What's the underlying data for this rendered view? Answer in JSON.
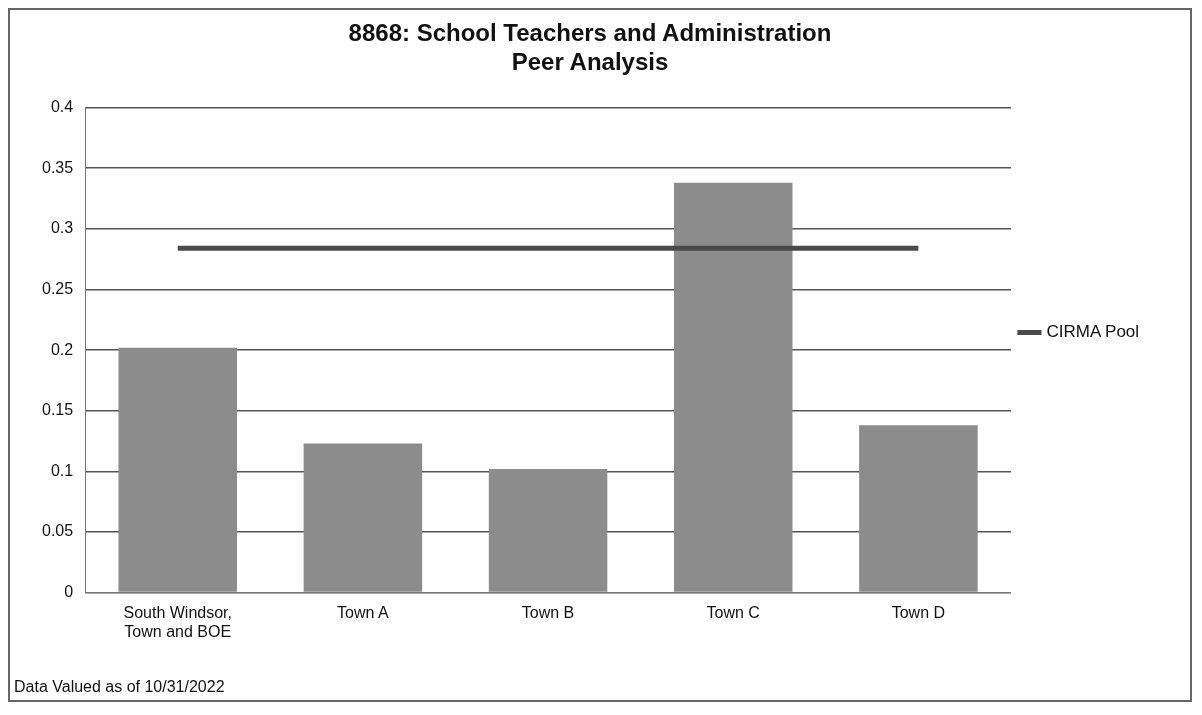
{
  "chart_data": {
    "type": "bar",
    "title": "8868: School Teachers and Administration\nPeer Analysis",
    "categories": [
      "South Windsor,\nTown and BOE",
      "Town A",
      "Town B",
      "Town C",
      "Town D"
    ],
    "series": [
      {
        "color": "#8c8c8c",
        "values": [
          0.202,
          0.123,
          0.102,
          0.338,
          0.138
        ]
      },
      {
        "type": "line",
        "name": "CIRMA Pool",
        "color": "#4a4a4a",
        "values": [
          0.284,
          0.284,
          0.284,
          0.284,
          0.284
        ]
      }
    ],
    "ylim": [
      0,
      0.4
    ],
    "yticks": [
      0,
      0.05,
      0.1,
      0.15,
      0.2,
      0.25,
      0.3,
      0.35,
      0.4
    ],
    "grid": "y",
    "legend": "right",
    "marker": "none",
    "annotations": [
      "Data Valued as of 10/31/2022"
    ]
  }
}
